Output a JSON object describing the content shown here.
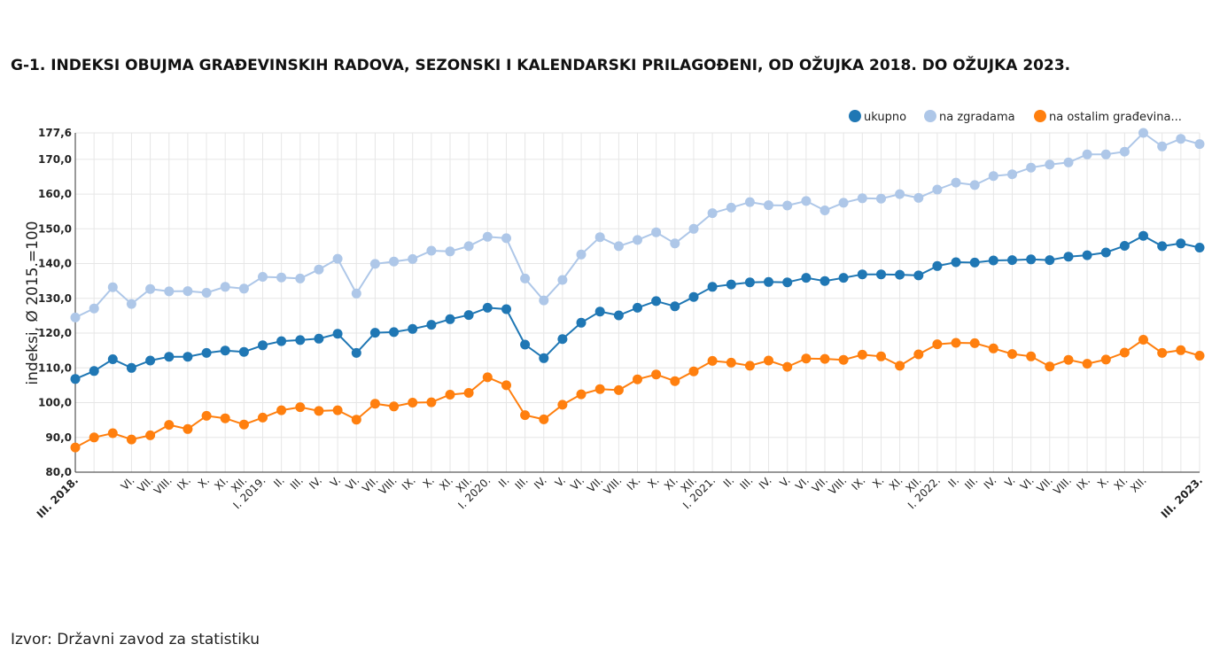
{
  "title": "G-1. INDEKSI OBUJMA GRAĐEVINSKIH RADOVA, SEZONSKI I KALENDARSKI PRILAGOĐENI, OD OŽUJKA 2018. DO OŽUJKA 2023.",
  "source": "Izvor: Državni zavod za statistiku",
  "chart_data": {
    "type": "line",
    "title": "G-1. INDEKSI OBUJMA GRAĐEVINSKIH RADOVA, SEZONSKI I KALENDARSKI PRILAGOĐENI, OD OŽUJKA 2018. DO OŽUJKA 2023.",
    "xlabel": "",
    "ylabel": "indeksi, Ø 2015.=100",
    "ylim": [
      80,
      177.6
    ],
    "yticks": [
      "80,0",
      "90,0",
      "100,0",
      "110,0",
      "120,0",
      "130,0",
      "140,0",
      "150,0",
      "160,0",
      "170,0",
      "177,6"
    ],
    "ytick_values": [
      80,
      90,
      100,
      110,
      120,
      130,
      140,
      150,
      160,
      170,
      177.6
    ],
    "grid": true,
    "legend_position": "top-right",
    "x_count": 61,
    "xtick_labels": [
      {
        "i": 0,
        "label": "III. 2018.",
        "bold": true
      },
      {
        "i": 3,
        "label": "VI."
      },
      {
        "i": 4,
        "label": "VII."
      },
      {
        "i": 5,
        "label": "VIII."
      },
      {
        "i": 6,
        "label": "IX."
      },
      {
        "i": 7,
        "label": "X."
      },
      {
        "i": 8,
        "label": "XI."
      },
      {
        "i": 9,
        "label": "XII."
      },
      {
        "i": 10,
        "label": "I. 2019."
      },
      {
        "i": 11,
        "label": "II."
      },
      {
        "i": 12,
        "label": "III."
      },
      {
        "i": 13,
        "label": "IV."
      },
      {
        "i": 14,
        "label": "V."
      },
      {
        "i": 15,
        "label": "VI."
      },
      {
        "i": 16,
        "label": "VII."
      },
      {
        "i": 17,
        "label": "VIII."
      },
      {
        "i": 18,
        "label": "IX."
      },
      {
        "i": 19,
        "label": "X."
      },
      {
        "i": 20,
        "label": "XI."
      },
      {
        "i": 21,
        "label": "XII."
      },
      {
        "i": 22,
        "label": "I. 2020."
      },
      {
        "i": 23,
        "label": "II."
      },
      {
        "i": 24,
        "label": "III."
      },
      {
        "i": 25,
        "label": "IV."
      },
      {
        "i": 26,
        "label": "V."
      },
      {
        "i": 27,
        "label": "VI."
      },
      {
        "i": 28,
        "label": "VII."
      },
      {
        "i": 29,
        "label": "VIII."
      },
      {
        "i": 30,
        "label": "IX."
      },
      {
        "i": 31,
        "label": "X."
      },
      {
        "i": 32,
        "label": "XI."
      },
      {
        "i": 33,
        "label": "XII."
      },
      {
        "i": 34,
        "label": "I. 2021."
      },
      {
        "i": 35,
        "label": "II."
      },
      {
        "i": 36,
        "label": "III."
      },
      {
        "i": 37,
        "label": "IV."
      },
      {
        "i": 38,
        "label": "V."
      },
      {
        "i": 39,
        "label": "VI."
      },
      {
        "i": 40,
        "label": "VII."
      },
      {
        "i": 41,
        "label": "VIII."
      },
      {
        "i": 42,
        "label": "IX."
      },
      {
        "i": 43,
        "label": "X."
      },
      {
        "i": 44,
        "label": "XI."
      },
      {
        "i": 45,
        "label": "XII."
      },
      {
        "i": 46,
        "label": "I. 2022."
      },
      {
        "i": 47,
        "label": "II."
      },
      {
        "i": 48,
        "label": "III."
      },
      {
        "i": 49,
        "label": "IV."
      },
      {
        "i": 50,
        "label": "V."
      },
      {
        "i": 51,
        "label": "VI."
      },
      {
        "i": 52,
        "label": "VII."
      },
      {
        "i": 53,
        "label": "VIII."
      },
      {
        "i": 54,
        "label": "IX."
      },
      {
        "i": 55,
        "label": "X."
      },
      {
        "i": 56,
        "label": "XI."
      },
      {
        "i": 57,
        "label": "XII."
      },
      {
        "i": 60,
        "label": "III. 2023.",
        "bold": true
      }
    ],
    "series": [
      {
        "name": "ukupno",
        "color": "#1f77b4",
        "values": [
          106.8,
          109.1,
          112.5,
          110.0,
          112.1,
          113.2,
          113.2,
          114.3,
          115.0,
          114.6,
          116.5,
          117.7,
          118.0,
          118.4,
          119.8,
          114.3,
          120.1,
          120.3,
          121.2,
          122.4,
          124.0,
          125.2,
          127.3,
          126.9,
          116.7,
          112.8,
          118.3,
          123.0,
          126.2,
          125.1,
          127.3,
          129.2,
          127.7,
          130.4,
          133.3,
          134.0,
          134.6,
          134.7,
          134.6,
          135.9,
          135.0,
          135.9,
          136.9,
          136.9,
          136.8,
          136.6,
          139.3,
          140.4,
          140.3,
          140.9,
          141.0,
          141.2,
          141.0,
          142.0,
          142.4,
          143.2,
          145.1,
          148.0,
          145.0,
          145.8,
          144.6
        ]
      },
      {
        "name": "na zgradama",
        "color": "#aec7e8",
        "values": [
          124.5,
          127.1,
          133.2,
          128.4,
          132.7,
          132.0,
          132.1,
          131.6,
          133.3,
          132.8,
          136.2,
          136.0,
          135.7,
          138.3,
          141.4,
          131.4,
          139.9,
          140.6,
          141.3,
          143.7,
          143.5,
          145.0,
          147.7,
          147.3,
          135.7,
          129.4,
          135.3,
          142.6,
          147.6,
          145.0,
          146.8,
          149.0,
          145.8,
          150.0,
          154.5,
          156.1,
          157.7,
          156.8,
          156.7,
          158.0,
          155.3,
          157.5,
          158.8,
          158.7,
          160.0,
          158.9,
          161.3,
          163.3,
          162.6,
          165.2,
          165.7,
          167.6,
          168.5,
          169.1,
          171.4,
          171.4,
          172.2,
          177.6,
          173.7,
          175.9,
          174.4
        ]
      },
      {
        "name": "na ostalim građevina...",
        "color": "#ff7f0e",
        "values": [
          87.1,
          90.0,
          91.2,
          89.4,
          90.6,
          93.6,
          92.4,
          96.2,
          95.5,
          93.7,
          95.7,
          97.8,
          98.7,
          97.6,
          97.8,
          95.1,
          99.7,
          98.9,
          100.0,
          100.1,
          102.3,
          102.8,
          107.3,
          105.0,
          96.4,
          95.2,
          99.4,
          102.4,
          103.9,
          103.6,
          106.7,
          108.1,
          106.2,
          109.0,
          112.0,
          111.5,
          110.6,
          112.1,
          110.3,
          112.7,
          112.6,
          112.3,
          113.8,
          113.3,
          110.6,
          113.9,
          116.8,
          117.2,
          117.1,
          115.6,
          114.0,
          113.3,
          110.4,
          112.3,
          111.2,
          112.4,
          114.4,
          118.1,
          114.3,
          115.1,
          113.5
        ]
      }
    ]
  }
}
